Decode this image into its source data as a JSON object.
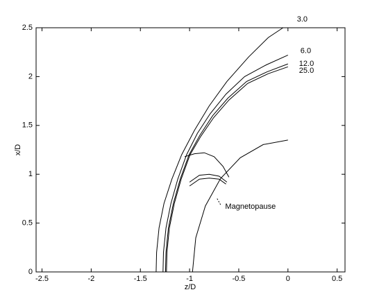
{
  "chart_data": {
    "type": "line",
    "xlabel": "z/D",
    "ylabel": "x/D",
    "xlim": [
      -2.56,
      0.58
    ],
    "ylim": [
      0,
      2.5
    ],
    "xticks": [
      -2.5,
      -2,
      -1.5,
      -1,
      -0.5,
      0,
      0.5
    ],
    "yticks": [
      0,
      0.5,
      1,
      1.5,
      2,
      2.5
    ],
    "color": "#000000",
    "series": [
      {
        "name": "3.0",
        "x": [
          -1.34,
          -1.335,
          -1.31,
          -1.26,
          -1.18,
          -1.08,
          -0.95,
          -0.8,
          -0.62,
          -0.4,
          -0.2,
          -0.05
        ],
        "values": [
          0,
          0.2,
          0.45,
          0.7,
          0.95,
          1.2,
          1.45,
          1.7,
          1.95,
          2.2,
          2.4,
          2.5
        ]
      },
      {
        "name": "6.0",
        "x": [
          -1.27,
          -1.265,
          -1.24,
          -1.19,
          -1.12,
          -1.03,
          -0.92,
          -0.79,
          -0.63,
          -0.44,
          -0.22,
          0
        ],
        "values": [
          0,
          0.2,
          0.45,
          0.7,
          0.95,
          1.2,
          1.42,
          1.62,
          1.82,
          2.0,
          2.12,
          2.22
        ]
      },
      {
        "name": "12.0",
        "x": [
          -1.245,
          -1.24,
          -1.215,
          -1.165,
          -1.095,
          -1.005,
          -0.895,
          -0.765,
          -0.61,
          -0.42,
          -0.21,
          0
        ],
        "values": [
          0,
          0.2,
          0.45,
          0.7,
          0.95,
          1.2,
          1.4,
          1.6,
          1.78,
          1.95,
          2.05,
          2.13
        ]
      },
      {
        "name": "25.0",
        "x": [
          -1.235,
          -1.23,
          -1.205,
          -1.155,
          -1.085,
          -0.995,
          -0.885,
          -0.755,
          -0.6,
          -0.41,
          -0.2,
          0
        ],
        "values": [
          0,
          0.2,
          0.45,
          0.7,
          0.95,
          1.2,
          1.39,
          1.58,
          1.76,
          1.93,
          2.03,
          2.1
        ]
      }
    ],
    "other_lines": [
      {
        "x": [
          -0.97,
          -0.937,
          -0.84,
          -0.686,
          -0.485,
          -0.251,
          0
        ],
        "values": [
          0,
          0.349,
          0.675,
          0.955,
          1.169,
          1.304,
          1.35
        ]
      },
      {
        "x": [
          -1.05,
          -0.95,
          -0.85,
          -0.75,
          -0.66,
          -0.6
        ],
        "values": [
          1.18,
          1.21,
          1.22,
          1.18,
          1.08,
          0.97
        ]
      },
      {
        "x": [
          -1.0,
          -0.9,
          -0.8,
          -0.7,
          -0.62
        ],
        "values": [
          0.92,
          0.99,
          1.0,
          0.98,
          0.92
        ]
      },
      {
        "x": [
          -1.0,
          -0.9,
          -0.8,
          -0.7,
          -0.63
        ],
        "values": [
          0.88,
          0.95,
          0.96,
          0.95,
          0.9
        ]
      }
    ],
    "annotation": {
      "text": "Magnetopause",
      "x": [
        -0.72,
        -0.68
      ],
      "values": [
        0.75,
        0.68
      ]
    }
  }
}
